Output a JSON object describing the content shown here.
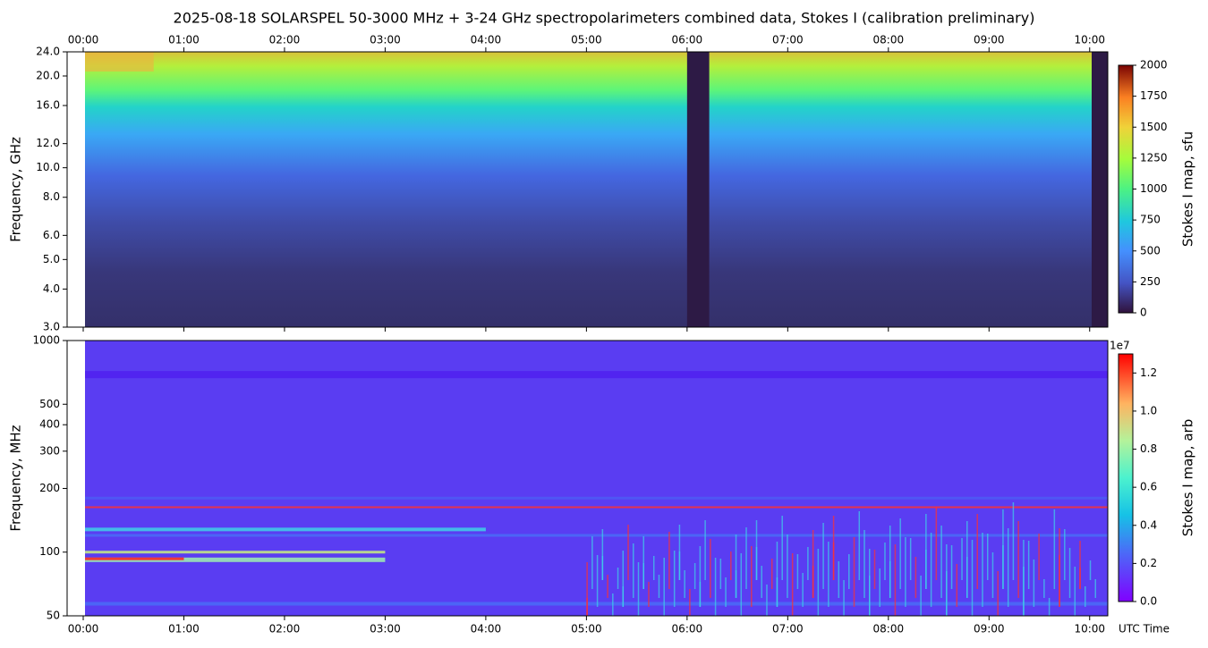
{
  "chart_data": [
    {
      "type": "heatmap",
      "title": "2025-08-18  SOLARSPEL  50-3000 MHz  +  3-24 GHz  spectropolarimeters combined data,  Stokes I  (calibration preliminary)",
      "ylabel": "Frequency, GHz",
      "yscale": "log",
      "ylim": [
        3,
        24
      ],
      "yticks": [
        {
          "value": 3,
          "label": "3.0"
        },
        {
          "value": 4,
          "label": "4.0"
        },
        {
          "value": 5,
          "label": "5.0"
        },
        {
          "value": 6,
          "label": "6.0"
        },
        {
          "value": 8,
          "label": "8.0"
        },
        {
          "value": 10,
          "label": "10.0"
        },
        {
          "value": 12,
          "label": "12.0"
        },
        {
          "value": 16,
          "label": "16.0"
        },
        {
          "value": 20,
          "label": "20.0"
        },
        {
          "value": 24,
          "label": "24.0"
        }
      ],
      "xlim": [
        -0.16,
        10.18
      ],
      "xticks": [
        {
          "value": 0,
          "label": "00:00"
        },
        {
          "value": 1,
          "label": "01:00"
        },
        {
          "value": 2,
          "label": "02:00"
        },
        {
          "value": 3,
          "label": "03:00"
        },
        {
          "value": 4,
          "label": "04:00"
        },
        {
          "value": 5,
          "label": "05:00"
        },
        {
          "value": 6,
          "label": "06:00"
        },
        {
          "value": 7,
          "label": "07:00"
        },
        {
          "value": 8,
          "label": "08:00"
        },
        {
          "value": 9,
          "label": "09:00"
        },
        {
          "value": 10,
          "label": "10:00"
        }
      ],
      "colorbar": {
        "label": "Stokes I map, sfu",
        "colormap": "turbo",
        "lim": [
          0,
          2000
        ],
        "ticks": [
          0,
          250,
          500,
          750,
          1000,
          1250,
          1500,
          1750,
          2000
        ]
      }
    },
    {
      "type": "heatmap",
      "ylabel": "Frequency, MHz",
      "xlabel": "UTC Time",
      "yscale": "log",
      "ylim": [
        50,
        1000
      ],
      "yticks": [
        50,
        100,
        200,
        300,
        400,
        500,
        1000
      ],
      "xlim": [
        -0.16,
        10.18
      ],
      "xticks": [
        {
          "value": 0,
          "label": "00:00"
        },
        {
          "value": 1,
          "label": "01:00"
        },
        {
          "value": 2,
          "label": "02:00"
        },
        {
          "value": 3,
          "label": "03:00"
        },
        {
          "value": 4,
          "label": "04:00"
        },
        {
          "value": 5,
          "label": "05:00"
        },
        {
          "value": 6,
          "label": "06:00"
        },
        {
          "value": 7,
          "label": "07:00"
        },
        {
          "value": 8,
          "label": "08:00"
        },
        {
          "value": 9,
          "label": "09:00"
        },
        {
          "value": 10,
          "label": "10:00"
        }
      ],
      "colorbar": {
        "label": "Stokes I map, arb",
        "colormap": "rainbow",
        "offset_label": "1e7",
        "lim": [
          0,
          1.3
        ],
        "ticks": [
          {
            "value": 0,
            "label": "0.0"
          },
          {
            "value": 0.2,
            "label": "0.2"
          },
          {
            "value": 0.4,
            "label": "0.4"
          },
          {
            "value": 0.6,
            "label": "0.6"
          },
          {
            "value": 0.8,
            "label": "0.8"
          },
          {
            "value": 1,
            "label": "1.0"
          },
          {
            "value": 1.2,
            "label": "1.2"
          }
        ]
      }
    }
  ]
}
